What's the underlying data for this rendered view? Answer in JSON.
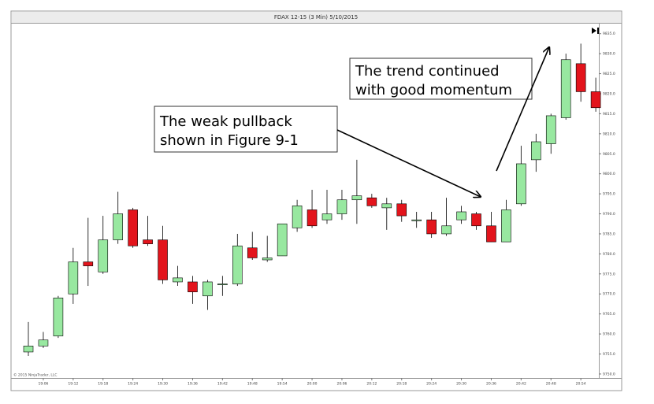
{
  "chart_data": {
    "type": "candlestick",
    "title": "FDAX 12-15 (3 Min)  5/10/2015",
    "copyright": "© 2015 NinjaTrader, LLC",
    "categories": [
      null,
      "19:06",
      null,
      "19:12",
      null,
      "19:18",
      null,
      "19:24",
      null,
      "19:30",
      null,
      "19:36",
      null,
      "19:42",
      null,
      "19:48",
      null,
      "19:54",
      null,
      "20:00",
      null,
      "20:06",
      null,
      "20:12",
      null,
      "20:18",
      null,
      "20:24",
      null,
      "20:30",
      null,
      "20:36",
      null,
      "20:42",
      null,
      "20:48",
      null,
      "20:54",
      null
    ],
    "open": [
      9755.5,
      9757,
      9759.5,
      9770,
      9778,
      9775.5,
      9783.5,
      9791,
      9783.5,
      9783.5,
      9773,
      9773,
      9769.5,
      9772.5,
      9772.5,
      9781.5,
      9778.5,
      9779.5,
      9786.5,
      9791,
      9788.5,
      9790,
      9793.5,
      9794,
      9791.5,
      9792.5,
      9788.5,
      9788.5,
      9785,
      9788.5,
      9790,
      9787,
      9783,
      9792.5,
      9803.5,
      9807.5,
      9814,
      9827.5,
      9820.5
    ],
    "high": [
      9763,
      9760.5,
      9769.5,
      9781.5,
      9789,
      9789.5,
      9795.5,
      9791.5,
      9789.5,
      9787,
      9777,
      9774.5,
      9773.5,
      9774.5,
      9785,
      9785.5,
      9784.5,
      9787.5,
      9793.5,
      9796,
      9796,
      9796,
      9803.5,
      9795,
      9794,
      9793.5,
      9790.5,
      9790.5,
      9794,
      9792,
      9790.5,
      9790.5,
      9793.5,
      9807,
      9810,
      9815,
      9830,
      9832.5,
      9824
    ],
    "low": [
      9754.5,
      9756.5,
      9759,
      9767.5,
      9772,
      9775,
      9782.5,
      9781.5,
      9782,
      9772.5,
      9772,
      9767.5,
      9766,
      9769.5,
      9772,
      9778.5,
      9778,
      9779.5,
      9785.5,
      9786.5,
      9787.5,
      9788.5,
      9787.5,
      9791.5,
      9786,
      9788,
      9786.5,
      9784,
      9784.5,
      9787.5,
      9786,
      9783,
      9783,
      9792,
      9800.5,
      9805,
      9813.5,
      9818,
      9815.5
    ],
    "close": [
      9757,
      9758.5,
      9769,
      9778,
      9777,
      9783.5,
      9790,
      9782,
      9782.5,
      9773.5,
      9774,
      9770.5,
      9773,
      9772.5,
      9782,
      9779,
      9779,
      9787.5,
      9792,
      9787,
      9790,
      9793.5,
      9794.5,
      9792,
      9792.5,
      9789.5,
      9788.5,
      9785,
      9787,
      9790.5,
      9787,
      9783,
      9791,
      9802.5,
      9808,
      9814.5,
      9828.5,
      9820.5,
      9816.5
    ],
    "up_color": "#98e8a0",
    "down_color": "#e3141c",
    "ylim": [
      9749,
      9837.5
    ],
    "yticks": [
      {
        "value": 9750,
        "label": "9750.0"
      },
      {
        "value": 9755,
        "label": "9755.0"
      },
      {
        "value": 9760,
        "label": "9760.0"
      },
      {
        "value": 9765,
        "label": "9765.0"
      },
      {
        "value": 9770,
        "label": "9770.0"
      },
      {
        "value": 9775,
        "label": "9775.0"
      },
      {
        "value": 9780,
        "label": "9780.0"
      },
      {
        "value": 9785,
        "label": "9785.0"
      },
      {
        "value": 9790,
        "label": "9790.0"
      },
      {
        "value": 9795,
        "label": "9795.0"
      },
      {
        "value": 9800,
        "label": "9800.0"
      },
      {
        "value": 9805,
        "label": "9805.0"
      },
      {
        "value": 9810,
        "label": "9810.0"
      },
      {
        "value": 9815,
        "label": "9815.0"
      },
      {
        "value": 9820,
        "label": "9820.0"
      },
      {
        "value": 9825,
        "label": "9825.0"
      },
      {
        "value": 9830,
        "label": "9830.0"
      },
      {
        "value": 9835,
        "label": "9835.0"
      }
    ],
    "annotations": [
      {
        "lines": [
          "The weak pullback",
          "shown in Figure 9-1"
        ]
      },
      {
        "lines": [
          "The trend continued",
          "with good momentum"
        ]
      }
    ]
  }
}
